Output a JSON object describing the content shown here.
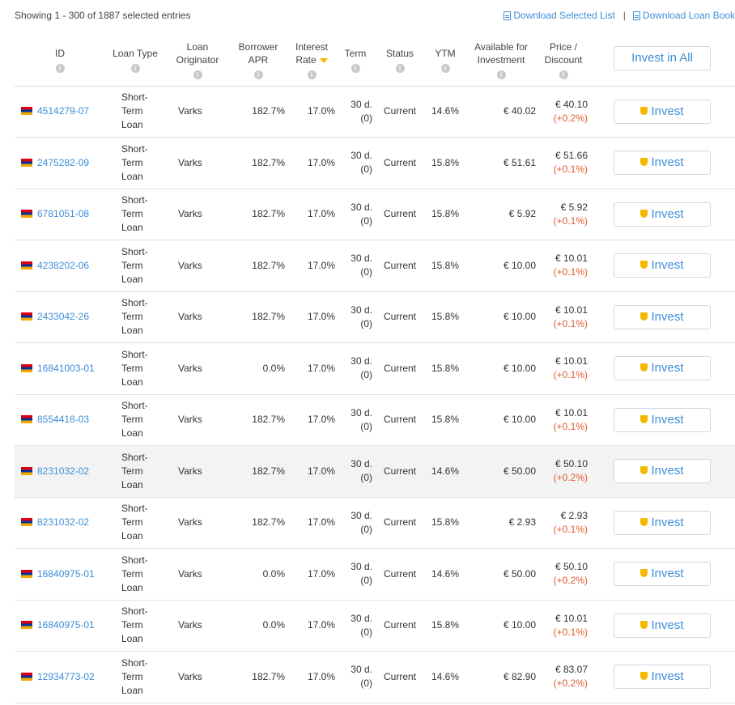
{
  "header": {
    "entries_text": "Showing 1 - 300 of 1887 selected entries",
    "download_selected": "Download Selected List",
    "separator": "|",
    "download_book": "Download Loan Book"
  },
  "columns": {
    "id": "ID",
    "loan_type": "Loan Type",
    "originator": "Loan Originator",
    "apr": "Borrower APR",
    "interest": "Interest Rate",
    "term": "Term",
    "status": "Status",
    "ytm": "YTM",
    "available": "Available for Investment",
    "price": "Price / Discount",
    "info_glyph": "i",
    "invest_all": "Invest in All"
  },
  "invest_label": "Invest",
  "rows": [
    {
      "id": "4514279-07",
      "type": "Short-Term Loan",
      "originator": "Varks",
      "apr": "182.7%",
      "rate": "17.0%",
      "term": "30 d.",
      "term_sub": "(0)",
      "status": "Current",
      "ytm": "14.6%",
      "available": "€ 40.02",
      "price": "€ 40.10",
      "discount": "(+0.2%)"
    },
    {
      "id": "2475282-09",
      "type": "Short-Term Loan",
      "originator": "Varks",
      "apr": "182.7%",
      "rate": "17.0%",
      "term": "30 d.",
      "term_sub": "(0)",
      "status": "Current",
      "ytm": "15.8%",
      "available": "€ 51.61",
      "price": "€ 51.66",
      "discount": "(+0.1%)"
    },
    {
      "id": "6781051-08",
      "type": "Short-Term Loan",
      "originator": "Varks",
      "apr": "182.7%",
      "rate": "17.0%",
      "term": "30 d.",
      "term_sub": "(0)",
      "status": "Current",
      "ytm": "15.8%",
      "available": "€ 5.92",
      "price": "€ 5.92",
      "discount": "(+0.1%)"
    },
    {
      "id": "4238202-06",
      "type": "Short-Term Loan",
      "originator": "Varks",
      "apr": "182.7%",
      "rate": "17.0%",
      "term": "30 d.",
      "term_sub": "(0)",
      "status": "Current",
      "ytm": "15.8%",
      "available": "€ 10.00",
      "price": "€ 10.01",
      "discount": "(+0.1%)"
    },
    {
      "id": "2433042-26",
      "type": "Short-Term Loan",
      "originator": "Varks",
      "apr": "182.7%",
      "rate": "17.0%",
      "term": "30 d.",
      "term_sub": "(0)",
      "status": "Current",
      "ytm": "15.8%",
      "available": "€ 10.00",
      "price": "€ 10.01",
      "discount": "(+0.1%)"
    },
    {
      "id": "16841003-01",
      "type": "Short-Term Loan",
      "originator": "Varks",
      "apr": "0.0%",
      "rate": "17.0%",
      "term": "30 d.",
      "term_sub": "(0)",
      "status": "Current",
      "ytm": "15.8%",
      "available": "€ 10.00",
      "price": "€ 10.01",
      "discount": "(+0.1%)"
    },
    {
      "id": "8554418-03",
      "type": "Short-Term Loan",
      "originator": "Varks",
      "apr": "182.7%",
      "rate": "17.0%",
      "term": "30 d.",
      "term_sub": "(0)",
      "status": "Current",
      "ytm": "15.8%",
      "available": "€ 10.00",
      "price": "€ 10.01",
      "discount": "(+0.1%)"
    },
    {
      "id": "8231032-02",
      "type": "Short-Term Loan",
      "originator": "Varks",
      "apr": "182.7%",
      "rate": "17.0%",
      "term": "30 d.",
      "term_sub": "(0)",
      "status": "Current",
      "ytm": "14.6%",
      "available": "€ 50.00",
      "price": "€ 50.10",
      "discount": "(+0.2%)",
      "highlight": true
    },
    {
      "id": "8231032-02",
      "type": "Short-Term Loan",
      "originator": "Varks",
      "apr": "182.7%",
      "rate": "17.0%",
      "term": "30 d.",
      "term_sub": "(0)",
      "status": "Current",
      "ytm": "15.8%",
      "available": "€ 2.93",
      "price": "€ 2.93",
      "discount": "(+0.1%)"
    },
    {
      "id": "16840975-01",
      "type": "Short-Term Loan",
      "originator": "Varks",
      "apr": "0.0%",
      "rate": "17.0%",
      "term": "30 d.",
      "term_sub": "(0)",
      "status": "Current",
      "ytm": "14.6%",
      "available": "€ 50.00",
      "price": "€ 50.10",
      "discount": "(+0.2%)"
    },
    {
      "id": "16840975-01",
      "type": "Short-Term Loan",
      "originator": "Varks",
      "apr": "0.0%",
      "rate": "17.0%",
      "term": "30 d.",
      "term_sub": "(0)",
      "status": "Current",
      "ytm": "15.8%",
      "available": "€ 10.00",
      "price": "€ 10.01",
      "discount": "(+0.1%)"
    },
    {
      "id": "12934773-02",
      "type": "Short-Term Loan",
      "originator": "Varks",
      "apr": "182.7%",
      "rate": "17.0%",
      "term": "30 d.",
      "term_sub": "(0)",
      "status": "Current",
      "ytm": "14.6%",
      "available": "€ 82.90",
      "price": "€ 83.07",
      "discount": "(+0.2%)"
    }
  ]
}
